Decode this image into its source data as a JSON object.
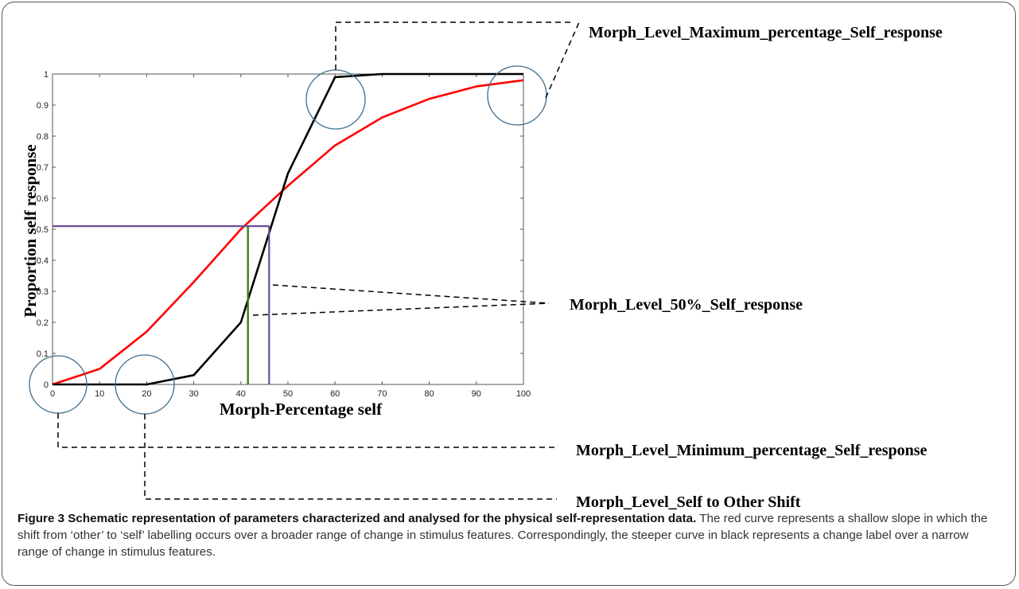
{
  "chart_data": {
    "type": "line",
    "xlabel": "Morph-Percentage self",
    "ylabel": "Proportion self response",
    "xlim": [
      0,
      100
    ],
    "ylim": [
      0,
      1
    ],
    "x_ticks": [
      0,
      10,
      20,
      30,
      40,
      50,
      60,
      70,
      80,
      90,
      100
    ],
    "y_ticks": [
      0,
      0.1,
      0.2,
      0.3,
      0.4,
      0.5,
      0.6,
      0.7,
      0.8,
      0.9,
      1
    ],
    "series": [
      {
        "color": "#ff0000",
        "x": [
          0,
          10,
          20,
          30,
          40,
          50,
          60,
          70,
          80,
          90,
          100
        ],
        "y": [
          0,
          0.05,
          0.17,
          0.33,
          0.5,
          0.64,
          0.77,
          0.86,
          0.92,
          0.96,
          0.98
        ]
      },
      {
        "color": "#000000",
        "x": [
          0,
          10,
          20,
          30,
          40,
          50,
          60,
          70,
          80,
          90,
          100
        ],
        "y": [
          0,
          0,
          0,
          0.03,
          0.2,
          0.68,
          0.99,
          1,
          1,
          1,
          1
        ]
      }
    ],
    "reference_lines": [
      {
        "color": "#6a4c93",
        "description_hidden": true,
        "x": 46,
        "y": 0.51
      },
      {
        "color": "#3a7d1e",
        "x": 41.5,
        "y": 0.51
      }
    ],
    "grid": false
  },
  "annotations": {
    "max_label": "Morph_Level_Maximum_percentage_Self_response",
    "fifty_label": "Morph_Level_50%_Self_response",
    "min_label": "Morph_Level_Minimum_percentage_Self_response",
    "shift_label": "Morph_Level_Self to Other Shift"
  },
  "caption": {
    "title": "Figure 3 Schematic representation of parameters characterized and analysed for the physical self-representation data.",
    "body": "The red curve represents a shallow slope in which the shift from ‘other’ to ‘self’ labelling occurs over a broader range of change in stimulus features. Correspondingly, the steeper curve in black represents a change label over a narrow range of change in stimulus features."
  },
  "colors": {
    "circle": "#3d6b8c",
    "axes": "#555555"
  }
}
